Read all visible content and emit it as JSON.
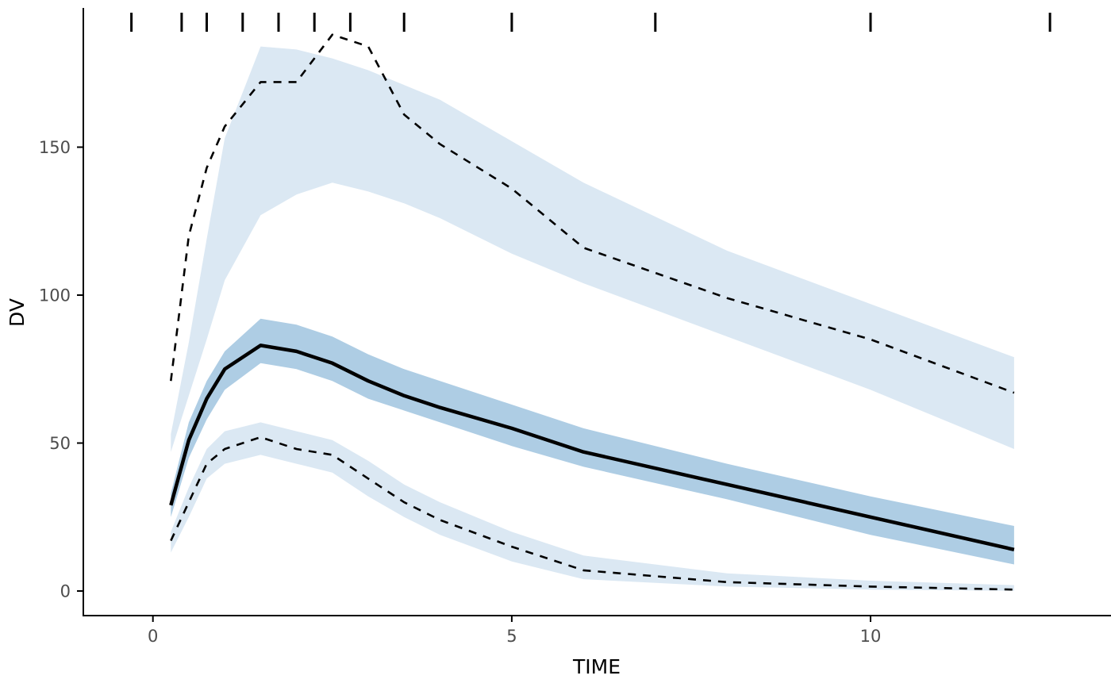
{
  "chart_data": {
    "type": "area",
    "title": "",
    "xlabel": "TIME",
    "ylabel": "DV",
    "xlim": [
      -0.97,
      13.35
    ],
    "ylim": [
      -8.3,
      196.5
    ],
    "x_ticks": [
      0,
      5,
      10
    ],
    "y_ticks": [
      0,
      50,
      100,
      150
    ],
    "grid": false,
    "legend": "none",
    "x": [
      0.25,
      0.5,
      0.75,
      1,
      1.5,
      2,
      2.5,
      3,
      3.5,
      4,
      5,
      6,
      8,
      10,
      12
    ],
    "ribbons": [
      {
        "name": "p95-ci-ribbon",
        "color": "#dbe8f3",
        "hi": [
          53,
          84,
          119,
          153,
          184,
          183,
          180,
          176,
          171,
          166,
          152,
          138,
          115,
          97,
          79
        ],
        "lo": [
          47,
          66,
          85,
          105,
          127,
          134,
          138,
          135,
          131,
          126,
          114,
          104,
          86,
          68,
          48
        ]
      },
      {
        "name": "median-ci-ribbon",
        "color": "#aecde4",
        "hi": [
          33,
          57,
          71,
          81,
          92,
          90,
          86,
          80,
          75,
          71,
          63,
          55,
          43,
          32,
          22
        ],
        "lo": [
          25,
          45,
          58,
          68,
          77,
          75,
          71,
          65,
          61,
          57,
          49,
          42,
          31,
          19,
          9
        ]
      },
      {
        "name": "p5-ci-ribbon",
        "color": "#dbe8f3",
        "hi": [
          20,
          35,
          48,
          54,
          57,
          54,
          51,
          44,
          36,
          30,
          20,
          12,
          6,
          3.5,
          2
        ],
        "lo": [
          13,
          25,
          38,
          43,
          46,
          43,
          40,
          32,
          25,
          19,
          10,
          4,
          1.5,
          0.5,
          0.1
        ]
      }
    ],
    "lines": [
      {
        "name": "p95-observed-line",
        "style": "dashed",
        "color": "#000000",
        "values": [
          71,
          120,
          143,
          157,
          172,
          172,
          188,
          184,
          161,
          151,
          136,
          116,
          99,
          85,
          67
        ]
      },
      {
        "name": "median-observed-line",
        "style": "solid",
        "color": "#000000",
        "values": [
          29,
          51,
          65,
          75,
          83,
          81,
          77,
          71,
          66,
          62,
          55,
          47,
          36,
          25,
          14
        ]
      },
      {
        "name": "p5-observed-line",
        "style": "dashed",
        "color": "#000000",
        "values": [
          17,
          30,
          43,
          48,
          52,
          48,
          46,
          38,
          30,
          24,
          15,
          7,
          3,
          1.5,
          0.5
        ]
      }
    ],
    "rug_times": [
      -0.3,
      0.4,
      0.75,
      1.25,
      1.75,
      2.25,
      2.75,
      3.5,
      5,
      7,
      10,
      12.5
    ]
  },
  "colors": {
    "background": "#ffffff",
    "axis": "#000000",
    "tick_label": "#4d4d4d",
    "ribbon_light": "#dbe8f3",
    "ribbon_dark": "#aecde4",
    "line": "#000000"
  }
}
